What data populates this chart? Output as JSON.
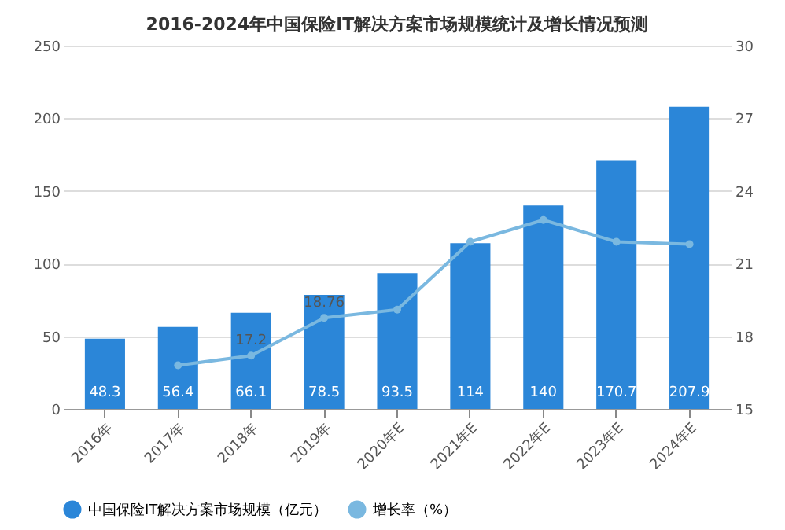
{
  "chart_data": {
    "type": "bar",
    "title": "2016-2024年中国保险IT解决方案市场规模统计及增长情况预测",
    "categories": [
      "2016年",
      "2017年",
      "2018年",
      "2019年",
      "2020年E",
      "2021年E",
      "2022年E",
      "2023年E",
      "2024年E"
    ],
    "series": [
      {
        "name": "中国保险IT解决方案市场规模（亿元）",
        "color": "#2b86d8",
        "values": [
          48.3,
          56.4,
          66.1,
          78.5,
          93.5,
          114,
          140,
          170.7,
          207.9
        ],
        "value_labels": [
          "48.3",
          "56.4",
          "66.1",
          "78.5",
          "93.5",
          "114",
          "140",
          "170.7",
          "207.9"
        ]
      },
      {
        "name": "增长率（%）",
        "type": "line",
        "axis": "y2",
        "color": "#7ab8e0",
        "marker": "circle",
        "values": [
          null,
          16.8,
          17.2,
          18.76,
          19.1,
          21.9,
          22.8,
          21.9,
          21.8
        ],
        "value_labels": [
          null,
          null,
          "17.2",
          "18.76",
          null,
          null,
          null,
          null,
          null
        ]
      }
    ],
    "ylim": [
      0,
      250
    ],
    "yticks": [
      0,
      50,
      100,
      150,
      200,
      250
    ],
    "y2lim": [
      15,
      30
    ],
    "y2ticks": [
      15,
      18,
      21,
      24,
      27,
      30
    ],
    "grid": "y",
    "legend": "bottom"
  }
}
